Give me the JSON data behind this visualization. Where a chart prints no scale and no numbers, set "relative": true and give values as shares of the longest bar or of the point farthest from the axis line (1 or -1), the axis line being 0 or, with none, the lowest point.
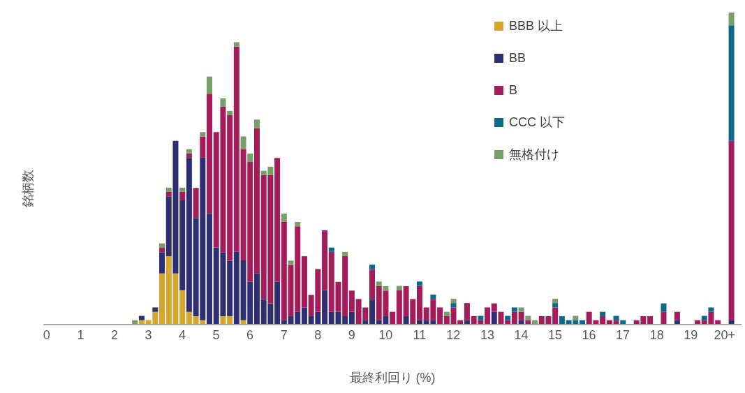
{
  "chart_data": {
    "type": "bar",
    "stacked": true,
    "relative": true,
    "xlabel": "最終利回り (%)",
    "ylabel": "銘柄数",
    "xlim": [
      -0.1,
      20.5
    ],
    "xticks": [
      0,
      1,
      2,
      3,
      4,
      5,
      6,
      7,
      8,
      9,
      10,
      11,
      12,
      13,
      14,
      15,
      16,
      17,
      18,
      19,
      {
        "value": 20,
        "label": "20+"
      }
    ],
    "legend": "top right",
    "grid": false,
    "x": [
      2.6,
      2.8,
      3.0,
      3.2,
      3.4,
      3.6,
      3.8,
      4.0,
      4.2,
      4.4,
      4.6,
      4.8,
      5.0,
      5.2,
      5.4,
      5.6,
      5.8,
      6.0,
      6.2,
      6.4,
      6.6,
      6.8,
      7.0,
      7.2,
      7.4,
      7.6,
      7.8,
      8.0,
      8.2,
      8.4,
      8.6,
      8.8,
      9.0,
      9.2,
      9.4,
      9.6,
      9.8,
      10.0,
      10.2,
      10.4,
      10.6,
      10.8,
      11.0,
      11.2,
      11.4,
      11.6,
      11.8,
      12.0,
      12.2,
      12.4,
      12.6,
      12.8,
      13.0,
      13.2,
      13.4,
      13.6,
      13.8,
      14.0,
      14.2,
      14.4,
      14.6,
      14.8,
      15.0,
      15.2,
      15.4,
      15.6,
      15.8,
      16.0,
      16.2,
      16.4,
      16.6,
      16.8,
      17.0,
      17.4,
      17.6,
      17.8,
      18.2,
      18.6,
      19.2,
      19.4,
      19.6,
      19.8,
      20.2
    ],
    "series": [
      {
        "name": "BBB 以上",
        "color": "#d4a72c",
        "values": [
          null,
          0.014,
          0.014,
          0.041,
          0.164,
          0.219,
          0.164,
          0.11,
          0.041,
          0.027,
          0.014,
          null,
          null,
          0.027,
          0.027,
          null,
          0.014,
          null,
          null,
          null,
          null,
          null,
          null,
          null,
          null,
          null,
          null,
          null,
          null,
          null,
          null,
          null,
          null,
          null,
          null,
          null,
          null,
          null,
          null,
          null,
          null,
          null,
          null,
          null,
          null,
          null,
          null,
          null,
          null,
          null,
          null,
          null,
          null,
          null,
          null,
          null,
          null,
          null,
          null,
          null,
          null,
          null,
          null,
          null,
          null,
          null,
          null,
          null,
          null,
          null,
          null,
          null,
          null,
          null,
          null,
          null,
          null,
          null,
          null,
          null,
          null,
          null,
          null
        ]
      },
      {
        "name": "BB",
        "color": "#2e2e72",
        "values": [
          null,
          0.014,
          null,
          0.014,
          0.068,
          0.192,
          0.425,
          0.288,
          0.493,
          0.315,
          0.521,
          0.356,
          0.247,
          0.205,
          0.178,
          0.233,
          0.192,
          0.137,
          0.164,
          0.082,
          0.068,
          0.137,
          0.014,
          0.027,
          0.041,
          0.055,
          0.027,
          0.041,
          0.11,
          0.041,
          0.041,
          0.027,
          0.041,
          null,
          0.014,
          0.082,
          0.014,
          0.027,
          null,
          null,
          0.027,
          null,
          0.014,
          0.014,
          0.014,
          null,
          null,
          null,
          null,
          0.014,
          null,
          null,
          null,
          0.041,
          null,
          null,
          null,
          0.014,
          null,
          null,
          null,
          null,
          null,
          null,
          null,
          null,
          null,
          null,
          null,
          null,
          null,
          null,
          null,
          null,
          null,
          null,
          null,
          0.014,
          null,
          null,
          null,
          null,
          0.014
        ]
      },
      {
        "name": "B",
        "color": "#a51c5a",
        "values": [
          null,
          null,
          null,
          null,
          0.014,
          0.014,
          null,
          0.027,
          0.014,
          0.096,
          0.068,
          0.384,
          0.37,
          0.466,
          0.466,
          0.658,
          0.356,
          0.384,
          0.466,
          0.397,
          0.411,
          0.397,
          0.315,
          0.164,
          0.274,
          0.164,
          0.068,
          0.137,
          0.192,
          0.192,
          0.096,
          0.192,
          0.068,
          0.082,
          0.041,
          0.096,
          0.11,
          0.082,
          0.041,
          0.11,
          0.096,
          0.082,
          0.11,
          0.041,
          0.068,
          0.055,
          0.027,
          0.055,
          0.014,
          0.055,
          0.027,
          0.014,
          0.055,
          0.027,
          0.041,
          0.014,
          0.041,
          0.027,
          0.014,
          null,
          0.027,
          0.027,
          0.055,
          null,
          null,
          null,
          null,
          0.041,
          0.014,
          0.027,
          0.014,
          0.014,
          null,
          0.014,
          0.027,
          0.027,
          0.041,
          0.027,
          0.014,
          0.014,
          0.041,
          0.014,
          0.575
        ]
      },
      {
        "name": "CCC 以下",
        "color": "#0a6a8c",
        "values": [
          null,
          null,
          null,
          null,
          null,
          null,
          null,
          null,
          null,
          null,
          null,
          null,
          null,
          null,
          null,
          null,
          null,
          null,
          null,
          null,
          null,
          null,
          null,
          null,
          null,
          null,
          null,
          null,
          null,
          0.014,
          null,
          null,
          null,
          null,
          null,
          0.014,
          null,
          null,
          null,
          null,
          null,
          null,
          0.014,
          null,
          0.014,
          null,
          null,
          0.014,
          null,
          null,
          null,
          0.014,
          null,
          null,
          null,
          0.014,
          0.014,
          null,
          null,
          null,
          null,
          null,
          0.014,
          0.027,
          0.014,
          0.014,
          0.014,
          null,
          null,
          0.014,
          null,
          0.014,
          0.014,
          null,
          null,
          null,
          0.027,
          null,
          null,
          0.014,
          0.014,
          null,
          0.37
        ]
      },
      {
        "name": "無格付け",
        "color": "#7a9e6a",
        "values": [
          0.014,
          null,
          null,
          null,
          0.014,
          0.014,
          null,
          0.014,
          0.014,
          null,
          0.014,
          0.055,
          null,
          0.027,
          0.014,
          0.014,
          0.041,
          0.027,
          0.027,
          0.014,
          0.027,
          null,
          0.027,
          0.014,
          0.014,
          null,
          null,
          null,
          null,
          null,
          null,
          0.014,
          null,
          null,
          null,
          null,
          0.014,
          0.014,
          null,
          0.014,
          null,
          null,
          null,
          null,
          null,
          null,
          0.014,
          0.014,
          null,
          null,
          null,
          null,
          null,
          null,
          null,
          null,
          null,
          0.014,
          0.014,
          0.014,
          null,
          null,
          0.014,
          null,
          null,
          0.014,
          null,
          null,
          null,
          null,
          null,
          null,
          null,
          null,
          null,
          null,
          null,
          null,
          null,
          null,
          null,
          null,
          0.041
        ]
      }
    ]
  }
}
